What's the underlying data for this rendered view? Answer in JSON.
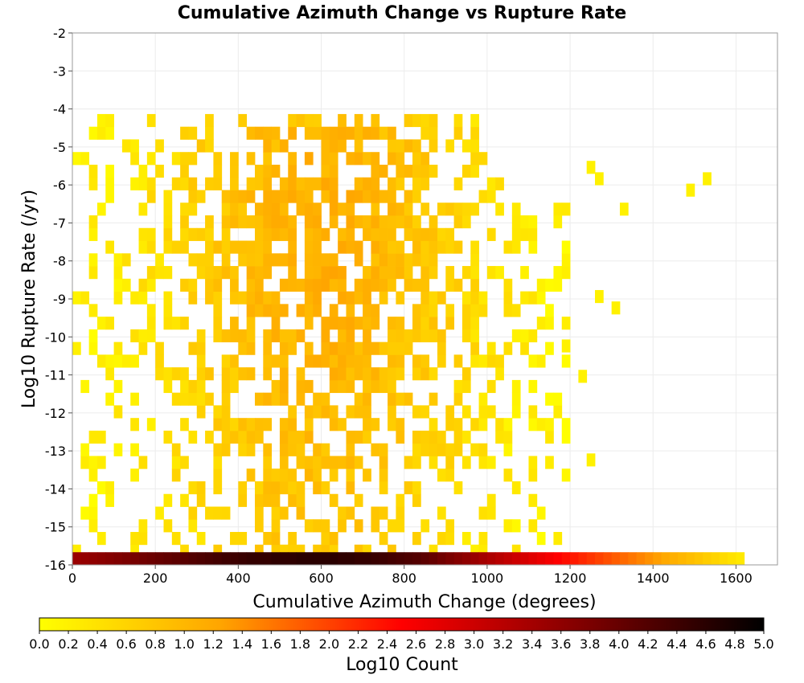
{
  "chart_data": {
    "type": "heatmap",
    "title": "Cumulative Azimuth Change vs Rupture Rate",
    "xlabel": "Cumulative Azimuth Change (degrees)",
    "ylabel": "Log10 Rupture Rate (/yr)",
    "xlim": [
      0,
      1700
    ],
    "ylim": [
      -16,
      -2
    ],
    "x_ticks": [
      "0",
      "200",
      "400",
      "600",
      "800",
      "1000",
      "1200",
      "1400",
      "1600"
    ],
    "y_ticks": [
      "-2",
      "-3",
      "-4",
      "-5",
      "-6",
      "-7",
      "-8",
      "-9",
      "-10",
      "-11",
      "-12",
      "-13",
      "-14",
      "-15",
      "-16"
    ],
    "bin_width_x": 20,
    "bin_height_y": 0.3333,
    "grid": true,
    "colorbar": {
      "label": "Log10 Count",
      "range": [
        0,
        5
      ],
      "ticks": [
        "0.0",
        "0.2",
        "0.4",
        "0.6",
        "0.8",
        "1.0",
        "1.2",
        "1.4",
        "1.6",
        "1.8",
        "2.0",
        "2.2",
        "2.4",
        "2.6",
        "2.8",
        "3.0",
        "3.2",
        "3.4",
        "3.6",
        "3.8",
        "4.0",
        "4.2",
        "4.4",
        "4.6",
        "4.8",
        "5.0"
      ],
      "colors": [
        "#ffff00",
        "#ffa500",
        "#ff0000",
        "#800000",
        "#000000"
      ]
    },
    "density_profile": {
      "x_range": [
        0,
        1200
      ],
      "x_peak": 600,
      "rate_range": [
        -15.8,
        -4
      ],
      "log10_count_peak": 1.1,
      "main_fill_fraction": 0.78
    },
    "bottom_row": {
      "rate": -16,
      "x_bins": [
        0,
        20,
        40,
        60,
        80,
        100,
        120,
        140,
        160,
        180,
        200,
        220,
        240,
        260,
        280,
        300,
        320,
        340,
        360,
        380,
        400,
        420,
        440,
        460,
        480,
        500,
        520,
        540,
        560,
        580,
        600,
        620,
        640,
        660,
        680,
        700,
        720,
        740,
        760,
        780,
        800,
        820,
        840,
        860,
        880,
        900,
        920,
        940,
        960,
        980,
        1000,
        1020,
        1040,
        1060,
        1080,
        1100,
        1120,
        1140,
        1160,
        1180,
        1200,
        1220,
        1240,
        1260,
        1280,
        1300,
        1320,
        1340,
        1360,
        1380,
        1400,
        1420,
        1440,
        1460,
        1480,
        1500,
        1520,
        1540,
        1560,
        1580,
        1600
      ],
      "log10_counts": [
        3.5,
        3.55,
        3.6,
        3.65,
        3.7,
        3.75,
        3.8,
        3.85,
        3.9,
        3.95,
        4.0,
        4.05,
        4.1,
        4.15,
        4.2,
        4.25,
        4.3,
        4.35,
        4.4,
        4.4,
        4.45,
        4.5,
        4.5,
        4.5,
        4.55,
        4.55,
        4.55,
        4.6,
        4.6,
        4.6,
        4.6,
        4.6,
        4.55,
        4.55,
        4.5,
        4.5,
        4.45,
        4.4,
        4.35,
        4.3,
        4.25,
        4.2,
        4.1,
        4.0,
        3.9,
        3.8,
        3.7,
        3.6,
        3.5,
        3.4,
        3.3,
        3.2,
        3.1,
        3.0,
        2.9,
        2.8,
        2.7,
        2.6,
        2.5,
        2.4,
        2.3,
        2.2,
        2.1,
        2.0,
        1.9,
        1.8,
        1.7,
        1.6,
        1.5,
        1.4,
        1.3,
        1.2,
        1.1,
        1.0,
        0.9,
        0.8,
        0.7,
        0.6,
        0.5,
        0.4,
        0.3
      ]
    },
    "outliers": [
      {
        "x": 1260,
        "rate": -6.0,
        "log10_count": 0.2
      },
      {
        "x": 1240,
        "rate": -5.7,
        "log10_count": 0.2
      },
      {
        "x": 1320,
        "rate": -6.8,
        "log10_count": 0.2
      },
      {
        "x": 1480,
        "rate": -6.3,
        "log10_count": 0.2
      },
      {
        "x": 1520,
        "rate": -6.0,
        "log10_count": 0.2
      },
      {
        "x": 1300,
        "rate": -9.4,
        "log10_count": 0.2
      },
      {
        "x": 1260,
        "rate": -9.1,
        "log10_count": 0.2
      },
      {
        "x": 1180,
        "rate": -10.4,
        "log10_count": 0.2
      },
      {
        "x": 1220,
        "rate": -11.2,
        "log10_count": 0.2
      },
      {
        "x": 1240,
        "rate": -13.4,
        "log10_count": 0.2
      }
    ]
  }
}
